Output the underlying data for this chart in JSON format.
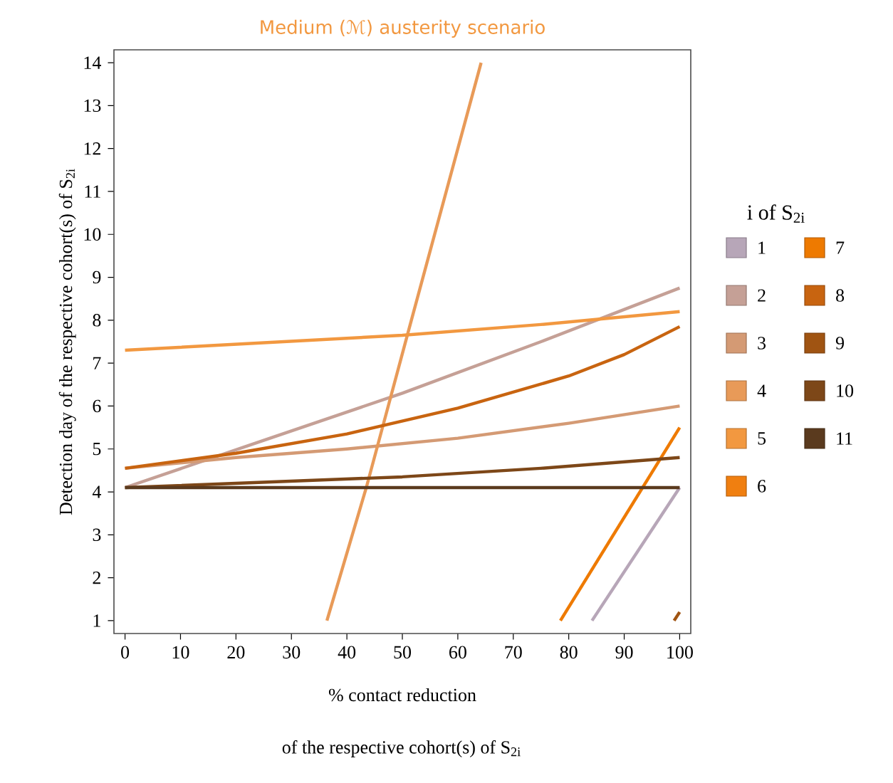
{
  "chart_data": {
    "type": "line",
    "title": "Medium (ℳ) austerity scenario",
    "xlabel": "% contact reduction",
    "ylabel": "Detection day of the respective cohort(s) of S$_{2i}$",
    "legend_title": "i of S$_{2i}$",
    "legend": "right",
    "annotations": [
      "of the respective cohort(s) of S$_{2i}$"
    ],
    "xlim": [
      -2,
      102
    ],
    "ylim": [
      0.7,
      14.3
    ],
    "xticks": [
      0,
      10,
      20,
      30,
      40,
      50,
      60,
      70,
      80,
      90,
      100
    ],
    "yticks": [
      1,
      2,
      3,
      4,
      5,
      6,
      7,
      8,
      9,
      10,
      11,
      12,
      13,
      14
    ],
    "series": [
      {
        "name": "1",
        "color": "#b7a6b8",
        "x": [
          84.2,
          100
        ],
        "values": [
          1,
          4.1
        ]
      },
      {
        "name": "2",
        "color": "#c5a096",
        "x": [
          0,
          25,
          50,
          75,
          100
        ],
        "values": [
          4.1,
          5.2,
          6.3,
          7.5,
          8.75
        ]
      },
      {
        "name": "3",
        "color": "#d49a74",
        "x": [
          0,
          20,
          40,
          60,
          80,
          100
        ],
        "values": [
          4.55,
          4.8,
          5.0,
          5.25,
          5.6,
          6.0
        ]
      },
      {
        "name": "4",
        "color": "#e89a58",
        "x": [
          36.4,
          43.5,
          51,
          64.2
        ],
        "values": [
          1,
          4.1,
          7.7,
          14
        ]
      },
      {
        "name": "5",
        "color": "#f29840",
        "x": [
          0,
          50,
          75,
          100
        ],
        "values": [
          7.3,
          7.65,
          7.9,
          8.2
        ]
      },
      {
        "name": "6",
        "color": "#f07f10"
      },
      {
        "name": "7",
        "color": "#ee7a00",
        "x": [
          78.5,
          100
        ],
        "values": [
          1,
          5.5
        ]
      },
      {
        "name": "8",
        "color": "#c86410",
        "x": [
          0,
          20,
          40,
          60,
          80,
          90,
          100
        ],
        "values": [
          4.55,
          4.9,
          5.35,
          5.95,
          6.7,
          7.2,
          7.85
        ]
      },
      {
        "name": "9",
        "color": "#a05412",
        "x": [
          99,
          100
        ],
        "values": [
          1,
          1.2
        ]
      },
      {
        "name": "10",
        "color": "#7d4718",
        "x": [
          0,
          50,
          75,
          100
        ],
        "values": [
          4.1,
          4.35,
          4.55,
          4.8
        ]
      },
      {
        "name": "11",
        "color": "#5a3a1e",
        "x": [
          0,
          100
        ],
        "values": [
          4.1,
          4.1
        ]
      }
    ]
  }
}
